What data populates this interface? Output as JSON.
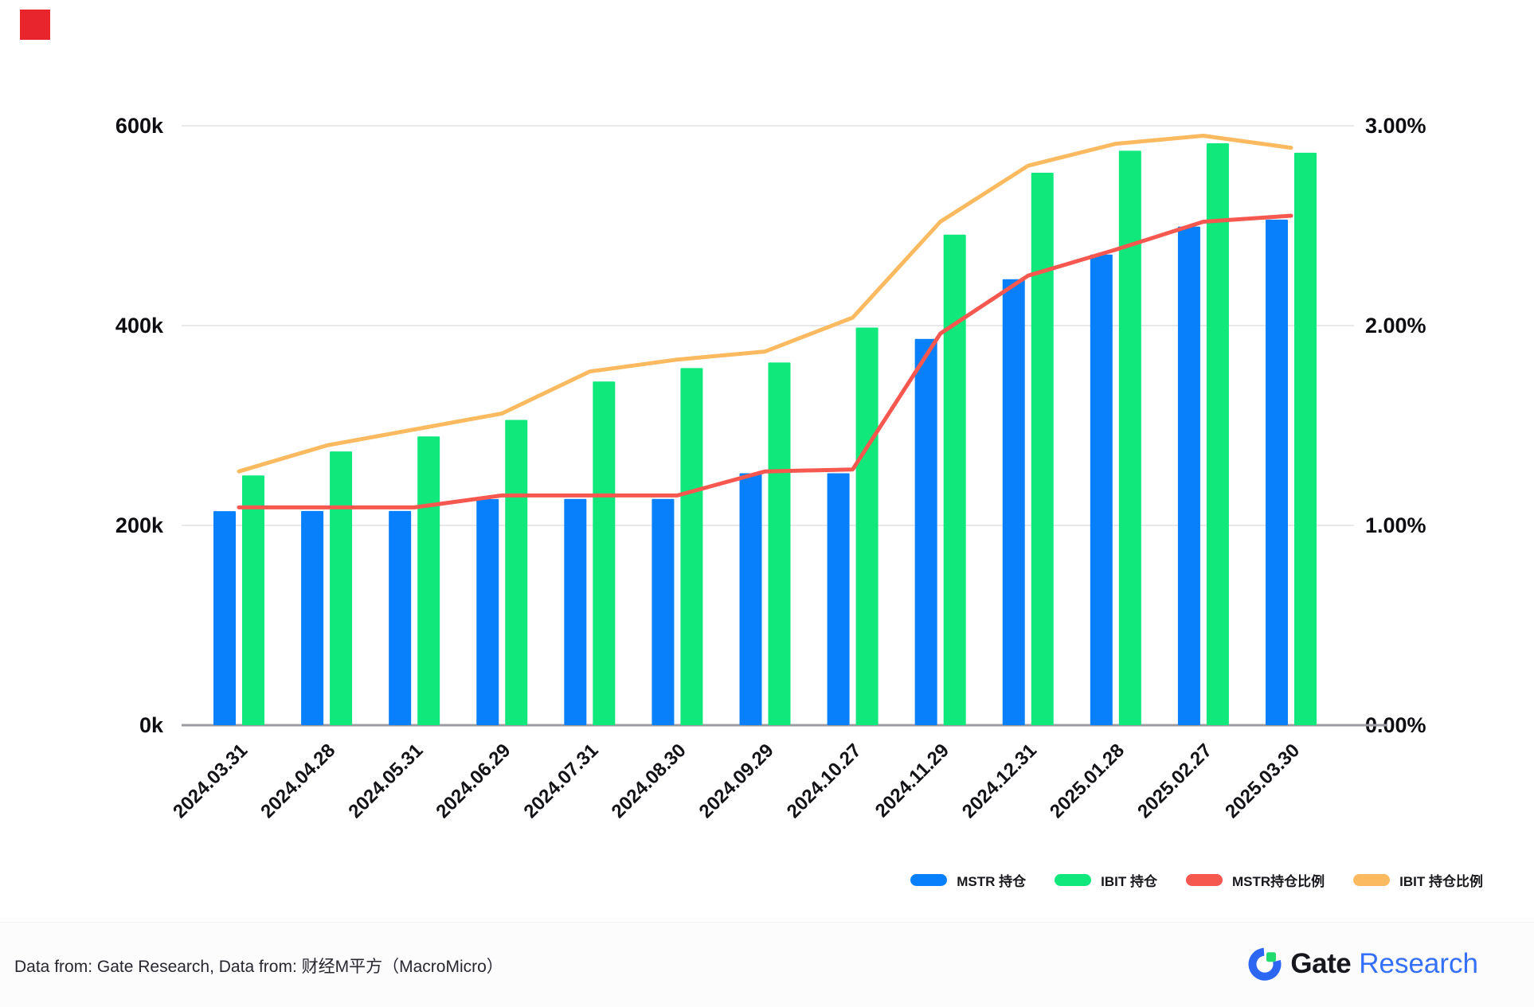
{
  "marker": {
    "color": "#e8252c"
  },
  "chart_data": {
    "type": "bar+line combo",
    "categories": [
      "2024.03.31",
      "2024.04.28",
      "2024.05.31",
      "2024.06.29",
      "2024.07.31",
      "2024.08.30",
      "2024.09.29",
      "2024.10.27",
      "2024.11.29",
      "2024.12.31",
      "2025.01.28",
      "2025.02.27",
      "2025.03.30"
    ],
    "series": [
      {
        "name": "MSTR 持仓",
        "type": "bar",
        "axis": "left",
        "color": "#0880fb",
        "values_k_btc": [
          214.2,
          214.4,
          214.4,
          226.3,
          226.5,
          226.5,
          252.2,
          252.2,
          386.7,
          446.4,
          471.1,
          499.1,
          506.1
        ]
      },
      {
        "name": "IBIT 持仓",
        "type": "bar",
        "axis": "left",
        "color": "#10e87c",
        "values_k_btc": [
          250,
          274,
          289,
          305.6,
          344,
          357.5,
          363,
          398,
          491,
          553,
          575,
          582.5,
          573
        ]
      },
      {
        "name": "MSTR持仓比例",
        "type": "line",
        "axis": "right",
        "color": "#f6574e",
        "values_pct": [
          1.09,
          1.09,
          1.09,
          1.15,
          1.15,
          1.15,
          1.27,
          1.28,
          1.96,
          2.25,
          2.38,
          2.52,
          2.55
        ]
      },
      {
        "name": "IBIT 持仓比例",
        "type": "line",
        "axis": "right",
        "color": "#fbb960",
        "values_pct": [
          1.27,
          1.4,
          1.48,
          1.56,
          1.77,
          1.83,
          1.87,
          2.04,
          2.52,
          2.8,
          2.91,
          2.95,
          2.89
        ]
      }
    ],
    "left_axis": {
      "ticks": [
        "0k",
        "200k",
        "400k",
        "600k"
      ],
      "max_k": 600
    },
    "right_axis": {
      "ticks": [
        "0.00%",
        "1.00%",
        "2.00%",
        "3.00%"
      ],
      "max_pct": 3
    },
    "grid": true,
    "legend_position": "bottom-right"
  },
  "footer": {
    "source_text": "Data from: Gate Research, Data from: 财经M平方（MacroMicro）",
    "logo": {
      "gate": "Gate",
      "research": "Research"
    }
  }
}
